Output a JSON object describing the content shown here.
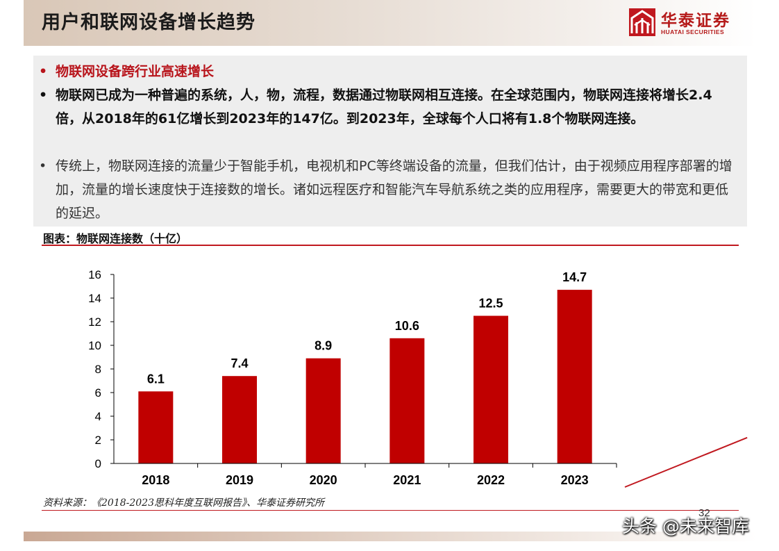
{
  "header": {
    "title": "用户和联网设备增长趋势",
    "logo_cn": "华泰证券",
    "logo_en": "HUATAI SECURITIES"
  },
  "bullets": [
    {
      "text": "物联网设备跨行业高速增长"
    },
    {
      "text": "物联网已成为一种普遍的系统，人，物，流程，数据通过物联网相互连接。在全球范围内，物联网连接将增长2.4倍，从2018年的61亿增长到2023年的147亿。到2023年，全球每个人口将有1.8个物联网连接。"
    },
    {
      "text": "传统上，物联网连接的流量少于智能手机，电视机和PC等终端设备的流量，但我们估计，由于视频应用程序部署的增加，流量的增长速度快于连接数的增长。诸如远程医疗和智能汽车导航系统之类的应用程序，需要更大的带宽和更低的延迟。"
    }
  ],
  "figure": {
    "caption": "图表：物联网连接数（十亿）",
    "source": "资料来源：《2018-2023思科年度互联网报告》、华泰证券研究所"
  },
  "page_number": "32",
  "watermark": "头条 @未来智库",
  "colors": {
    "accent": "#c0181f",
    "bar": "#c00000"
  },
  "chart_data": {
    "type": "bar",
    "categories": [
      "2018",
      "2019",
      "2020",
      "2021",
      "2022",
      "2023"
    ],
    "values": [
      6.1,
      7.4,
      8.9,
      10.6,
      12.5,
      14.7
    ],
    "data_labels": [
      "6.1",
      "7.4",
      "8.9",
      "10.6",
      "12.5",
      "14.7"
    ],
    "yticks": [
      "0",
      "2",
      "4",
      "6",
      "8",
      "10",
      "12",
      "14",
      "16"
    ],
    "ylim": [
      0,
      16
    ],
    "grid": false,
    "legend": "none",
    "title": "",
    "xlabel": "",
    "ylabel": ""
  }
}
